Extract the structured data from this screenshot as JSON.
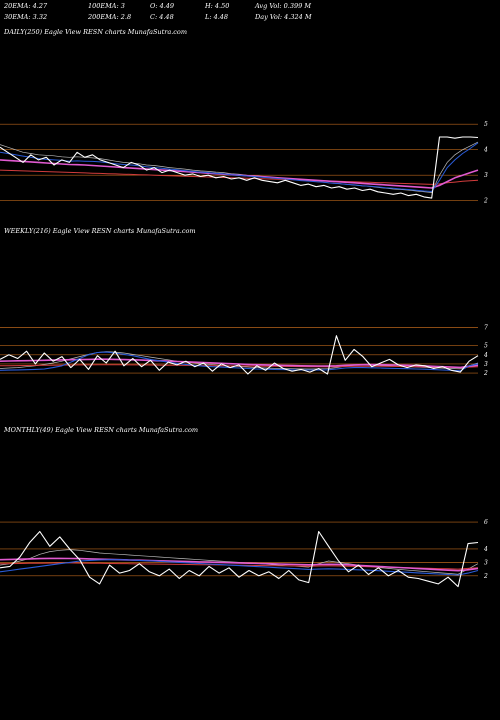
{
  "header": {
    "ema20": "20EMA: 4.27",
    "ema100": "100EMA: 3",
    "open": "O: 4.49",
    "high": "H: 4.50",
    "avgvol": "Avg Vol: 0.399  M",
    "ema30": "30EMA: 3.32",
    "ema200": "200EMA: 2.8",
    "close": "C: 4.48",
    "low": "L: 4.48",
    "dayvol": "Day Vol: 4.324  M"
  },
  "colors": {
    "background": "#000000",
    "price": "#ffffff",
    "gridline": "#b8651b",
    "ema_blue": "#2a5bd7",
    "ema_pink": "#e05ad0",
    "ema_red": "#d23c3c",
    "ema_grey": "#bbbbbb"
  },
  "chart_data": [
    {
      "type": "line",
      "title": "DAILY(250) Eagle  View  RESN  charts MunafaSutra.com",
      "yticks": [
        "5",
        "4",
        "3",
        "2"
      ],
      "y_tick_values": [
        5,
        4,
        3,
        2
      ],
      "ylim": [
        1.4,
        5.4
      ],
      "x": [
        0,
        4,
        8,
        12,
        16,
        20,
        24,
        28,
        32,
        36,
        40,
        44,
        48,
        52,
        56,
        60,
        64,
        68,
        72,
        76,
        80,
        84,
        88,
        92,
        96,
        100,
        104,
        108,
        112,
        116,
        120,
        124,
        128,
        132,
        136,
        140,
        144,
        148,
        152,
        156,
        160,
        164,
        168,
        172,
        176,
        180,
        184,
        188,
        192,
        196,
        200,
        204,
        208,
        212,
        216,
        220,
        224,
        228,
        232,
        236,
        240,
        244,
        248
      ],
      "series": [
        {
          "color": "#ffffff",
          "width": 1.1,
          "values": [
            4.1,
            3.9,
            3.7,
            3.5,
            3.8,
            3.6,
            3.7,
            3.4,
            3.6,
            3.5,
            3.9,
            3.7,
            3.8,
            3.6,
            3.5,
            3.4,
            3.3,
            3.5,
            3.4,
            3.2,
            3.3,
            3.1,
            3.2,
            3.1,
            3.0,
            3.05,
            2.95,
            3.0,
            2.9,
            2.95,
            2.85,
            2.9,
            2.8,
            2.9,
            2.8,
            2.75,
            2.7,
            2.8,
            2.7,
            2.6,
            2.65,
            2.55,
            2.6,
            2.5,
            2.55,
            2.45,
            2.5,
            2.4,
            2.45,
            2.35,
            2.3,
            2.25,
            2.3,
            2.2,
            2.25,
            2.15,
            2.1,
            4.5,
            4.5,
            4.45,
            4.5,
            4.5,
            4.48
          ]
        },
        {
          "color": "#2a5bd7",
          "width": 1.0,
          "values": [
            3.9,
            3.85,
            3.8,
            3.75,
            3.7,
            3.65,
            3.62,
            3.6,
            3.58,
            3.55,
            3.56,
            3.55,
            3.54,
            3.52,
            3.49,
            3.45,
            3.42,
            3.4,
            3.37,
            3.33,
            3.3,
            3.27,
            3.24,
            3.21,
            3.18,
            3.15,
            3.12,
            3.1,
            3.07,
            3.05,
            3.02,
            3.0,
            2.97,
            2.95,
            2.92,
            2.9,
            2.87,
            2.85,
            2.82,
            2.79,
            2.77,
            2.74,
            2.72,
            2.69,
            2.67,
            2.64,
            2.62,
            2.59,
            2.57,
            2.54,
            2.51,
            2.49,
            2.46,
            2.44,
            2.41,
            2.38,
            2.36,
            2.8,
            3.3,
            3.6,
            3.85,
            4.05,
            4.27
          ]
        },
        {
          "color": "#e05ad0",
          "width": 1.6,
          "values": [
            3.6,
            3.58,
            3.56,
            3.54,
            3.52,
            3.5,
            3.48,
            3.46,
            3.44,
            3.42,
            3.41,
            3.4,
            3.38,
            3.36,
            3.34,
            3.32,
            3.3,
            3.28,
            3.26,
            3.24,
            3.22,
            3.2,
            3.18,
            3.16,
            3.14,
            3.12,
            3.1,
            3.08,
            3.06,
            3.04,
            3.02,
            3.0,
            2.98,
            2.96,
            2.94,
            2.92,
            2.9,
            2.88,
            2.86,
            2.84,
            2.82,
            2.8,
            2.78,
            2.76,
            2.74,
            2.72,
            2.7,
            2.68,
            2.66,
            2.64,
            2.62,
            2.6,
            2.58,
            2.56,
            2.54,
            2.52,
            2.5,
            2.6,
            2.75,
            2.9,
            3.0,
            3.1,
            3.2
          ]
        },
        {
          "color": "#d23c3c",
          "width": 1.0,
          "values": [
            3.2,
            3.19,
            3.18,
            3.17,
            3.16,
            3.15,
            3.14,
            3.13,
            3.12,
            3.11,
            3.1,
            3.09,
            3.08,
            3.07,
            3.06,
            3.05,
            3.04,
            3.03,
            3.02,
            3.01,
            3.0,
            2.99,
            2.98,
            2.97,
            2.96,
            2.95,
            2.94,
            2.93,
            2.92,
            2.91,
            2.9,
            2.89,
            2.88,
            2.87,
            2.86,
            2.85,
            2.84,
            2.83,
            2.82,
            2.81,
            2.8,
            2.79,
            2.78,
            2.77,
            2.76,
            2.75,
            2.74,
            2.73,
            2.72,
            2.71,
            2.7,
            2.69,
            2.68,
            2.67,
            2.66,
            2.65,
            2.64,
            2.66,
            2.7,
            2.73,
            2.76,
            2.78,
            2.8
          ]
        },
        {
          "color": "#bbbbbb",
          "width": 0.7,
          "values": [
            4.2,
            4.1,
            4.0,
            3.9,
            3.85,
            3.8,
            3.78,
            3.76,
            3.72,
            3.7,
            3.72,
            3.7,
            3.68,
            3.65,
            3.6,
            3.55,
            3.5,
            3.48,
            3.45,
            3.4,
            3.38,
            3.34,
            3.3,
            3.27,
            3.24,
            3.2,
            3.17,
            3.15,
            3.12,
            3.1,
            3.06,
            3.04,
            3.0,
            2.98,
            2.95,
            2.92,
            2.89,
            2.87,
            2.84,
            2.8,
            2.78,
            2.75,
            2.72,
            2.69,
            2.67,
            2.64,
            2.61,
            2.58,
            2.56,
            2.52,
            2.49,
            2.46,
            2.44,
            2.41,
            2.38,
            2.35,
            2.32,
            3.0,
            3.5,
            3.8,
            4.0,
            4.15,
            4.3
          ]
        }
      ]
    },
    {
      "type": "line",
      "title": "WEEKLY(216) Eagle  View  RESN  charts MunafaSutra.com",
      "yticks": [
        "7",
        "5",
        "4",
        "3",
        "2"
      ],
      "y_tick_values": [
        7,
        5,
        4,
        3,
        2
      ],
      "ylim": [
        0.8,
        7.6
      ],
      "x": [
        0,
        4,
        8,
        12,
        16,
        20,
        24,
        28,
        32,
        36,
        40,
        44,
        48,
        52,
        56,
        60,
        64,
        68,
        72,
        76,
        80,
        84,
        88,
        92,
        96,
        100,
        104,
        108,
        112,
        116,
        120,
        124,
        128,
        132,
        136,
        140,
        144,
        148,
        152,
        156,
        160,
        164,
        168,
        172,
        176,
        180,
        184,
        188,
        192,
        196,
        200,
        204,
        208,
        212,
        216
      ],
      "series": [
        {
          "color": "#ffffff",
          "width": 1.1,
          "values": [
            3.5,
            4.0,
            3.6,
            4.4,
            3.0,
            4.2,
            3.3,
            3.8,
            2.6,
            3.5,
            2.4,
            3.9,
            3.1,
            4.4,
            2.8,
            3.6,
            2.7,
            3.4,
            2.3,
            3.2,
            2.9,
            3.3,
            2.7,
            3.1,
            2.2,
            3.0,
            2.6,
            2.9,
            1.9,
            2.8,
            2.3,
            3.1,
            2.5,
            2.2,
            2.4,
            2.1,
            2.5,
            1.9,
            6.1,
            3.4,
            4.6,
            3.8,
            2.7,
            3.1,
            3.5,
            2.9,
            2.6,
            2.9,
            2.8,
            2.5,
            2.7,
            2.3,
            2.1,
            3.3,
            3.9
          ]
        },
        {
          "color": "#2a5bd7",
          "width": 1.1,
          "values": [
            2.3,
            2.32,
            2.35,
            2.37,
            2.4,
            2.45,
            2.6,
            2.8,
            3.2,
            3.6,
            4.0,
            4.25,
            4.3,
            4.2,
            4.05,
            3.9,
            3.7,
            3.5,
            3.35,
            3.2,
            3.05,
            2.95,
            2.85,
            2.75,
            2.7,
            2.65,
            2.6,
            2.55,
            2.5,
            2.45,
            2.42,
            2.4,
            2.38,
            2.36,
            2.34,
            2.33,
            2.34,
            2.36,
            2.45,
            2.55,
            2.6,
            2.6,
            2.58,
            2.55,
            2.52,
            2.5,
            2.48,
            2.45,
            2.42,
            2.38,
            2.34,
            2.3,
            2.25,
            2.8,
            3.0
          ]
        },
        {
          "color": "#e05ad0",
          "width": 1.6,
          "values": [
            3.3,
            3.32,
            3.34,
            3.36,
            3.38,
            3.4,
            3.42,
            3.44,
            3.46,
            3.48,
            3.5,
            3.52,
            3.52,
            3.5,
            3.48,
            3.45,
            3.42,
            3.39,
            3.35,
            3.31,
            3.27,
            3.23,
            3.19,
            3.15,
            3.11,
            3.07,
            3.03,
            2.99,
            2.95,
            2.92,
            2.89,
            2.86,
            2.84,
            2.82,
            2.8,
            2.78,
            2.77,
            2.76,
            2.8,
            2.85,
            2.9,
            2.92,
            2.93,
            2.92,
            2.9,
            2.88,
            2.85,
            2.82,
            2.78,
            2.74,
            2.7,
            2.66,
            2.62,
            2.75,
            2.85
          ]
        },
        {
          "color": "#d23c3c",
          "width": 1.0,
          "values": [
            2.8,
            2.81,
            2.82,
            2.83,
            2.84,
            2.85,
            2.86,
            2.87,
            2.88,
            2.89,
            2.9,
            2.91,
            2.92,
            2.92,
            2.91,
            2.9,
            2.89,
            2.88,
            2.87,
            2.86,
            2.85,
            2.84,
            2.83,
            2.82,
            2.81,
            2.8,
            2.79,
            2.78,
            2.77,
            2.76,
            2.75,
            2.74,
            2.73,
            2.72,
            2.71,
            2.7,
            2.69,
            2.68,
            2.7,
            2.72,
            2.74,
            2.75,
            2.75,
            2.74,
            2.73,
            2.72,
            2.71,
            2.7,
            2.68,
            2.66,
            2.64,
            2.62,
            2.6,
            2.65,
            2.7
          ]
        },
        {
          "color": "#bbbbbb",
          "width": 0.7,
          "values": [
            2.5,
            2.55,
            2.6,
            2.7,
            2.8,
            2.95,
            3.1,
            3.3,
            3.55,
            3.8,
            4.05,
            4.25,
            4.35,
            4.3,
            4.2,
            4.05,
            3.9,
            3.75,
            3.6,
            3.45,
            3.3,
            3.2,
            3.1,
            3.0,
            2.92,
            2.85,
            2.78,
            2.72,
            2.66,
            2.6,
            2.56,
            2.52,
            2.5,
            2.48,
            2.46,
            2.45,
            2.46,
            2.48,
            2.6,
            2.75,
            2.85,
            2.88,
            2.86,
            2.82,
            2.78,
            2.74,
            2.7,
            2.66,
            2.62,
            2.58,
            2.54,
            2.5,
            2.46,
            2.8,
            3.1
          ]
        }
      ]
    },
    {
      "type": "line",
      "title": "MONTHLY(49) Eagle  View  RESN  charts MunafaSutra.com",
      "yticks": [
        "6",
        "4",
        "3",
        "2"
      ],
      "y_tick_values": [
        6,
        4,
        3,
        2
      ],
      "ylim": [
        0.5,
        6.6
      ],
      "x": [
        0,
        1,
        2,
        3,
        4,
        5,
        6,
        7,
        8,
        9,
        10,
        11,
        12,
        13,
        14,
        15,
        16,
        17,
        18,
        19,
        20,
        21,
        22,
        23,
        24,
        25,
        26,
        27,
        28,
        29,
        30,
        31,
        32,
        33,
        34,
        35,
        36,
        37,
        38,
        39,
        40,
        41,
        42,
        43,
        44,
        45,
        46,
        47,
        48
      ],
      "series": [
        {
          "color": "#ffffff",
          "width": 1.1,
          "values": [
            2.6,
            2.7,
            3.4,
            4.5,
            5.3,
            4.2,
            4.9,
            4.0,
            3.2,
            1.9,
            1.4,
            2.8,
            2.2,
            2.4,
            2.9,
            2.3,
            2.0,
            2.5,
            1.8,
            2.4,
            2.0,
            2.7,
            2.2,
            2.6,
            1.9,
            2.4,
            2.0,
            2.3,
            1.8,
            2.4,
            1.7,
            1.5,
            5.3,
            4.2,
            3.1,
            2.3,
            2.8,
            2.1,
            2.6,
            2.0,
            2.4,
            1.9,
            1.8,
            1.6,
            1.4,
            1.9,
            1.2,
            4.4,
            4.48
          ]
        },
        {
          "color": "#2a5bd7",
          "width": 1.1,
          "values": [
            2.3,
            2.4,
            2.5,
            2.6,
            2.7,
            2.8,
            2.9,
            3.0,
            3.1,
            3.15,
            3.18,
            3.2,
            3.2,
            3.18,
            3.15,
            3.12,
            3.08,
            3.04,
            3.0,
            2.96,
            2.92,
            2.88,
            2.84,
            2.8,
            2.76,
            2.72,
            2.68,
            2.64,
            2.6,
            2.56,
            2.52,
            2.48,
            2.5,
            2.52,
            2.5,
            2.48,
            2.45,
            2.42,
            2.38,
            2.34,
            2.3,
            2.26,
            2.22,
            2.18,
            2.14,
            2.1,
            2.06,
            2.2,
            2.4
          ]
        },
        {
          "color": "#e05ad0",
          "width": 1.6,
          "values": [
            3.2,
            3.22,
            3.24,
            3.26,
            3.28,
            3.3,
            3.3,
            3.29,
            3.28,
            3.26,
            3.24,
            3.22,
            3.2,
            3.18,
            3.16,
            3.14,
            3.12,
            3.1,
            3.08,
            3.06,
            3.04,
            3.02,
            3.0,
            2.98,
            2.96,
            2.94,
            2.92,
            2.9,
            2.88,
            2.86,
            2.84,
            2.82,
            2.84,
            2.86,
            2.85,
            2.82,
            2.78,
            2.74,
            2.7,
            2.66,
            2.62,
            2.58,
            2.54,
            2.5,
            2.46,
            2.42,
            2.38,
            2.45,
            2.55
          ]
        },
        {
          "color": "#d23c3c",
          "width": 1.0,
          "values": [
            2.9,
            2.91,
            2.92,
            2.93,
            2.94,
            2.95,
            2.96,
            2.96,
            2.95,
            2.94,
            2.93,
            2.92,
            2.91,
            2.9,
            2.89,
            2.88,
            2.87,
            2.86,
            2.85,
            2.84,
            2.83,
            2.82,
            2.81,
            2.8,
            2.79,
            2.78,
            2.77,
            2.76,
            2.75,
            2.74,
            2.73,
            2.72,
            2.73,
            2.74,
            2.73,
            2.72,
            2.7,
            2.68,
            2.66,
            2.64,
            2.62,
            2.6,
            2.58,
            2.56,
            2.54,
            2.52,
            2.5,
            2.55,
            2.6
          ]
        },
        {
          "color": "#bbbbbb",
          "width": 0.7,
          "values": [
            2.8,
            2.9,
            3.1,
            3.3,
            3.6,
            3.8,
            3.9,
            3.95,
            3.9,
            3.8,
            3.7,
            3.65,
            3.6,
            3.55,
            3.5,
            3.45,
            3.4,
            3.35,
            3.3,
            3.25,
            3.2,
            3.15,
            3.1,
            3.05,
            3.0,
            2.95,
            2.9,
            2.85,
            2.8,
            2.75,
            2.7,
            2.65,
            2.9,
            3.1,
            3.0,
            2.9,
            2.8,
            2.7,
            2.62,
            2.55,
            2.48,
            2.42,
            2.36,
            2.3,
            2.24,
            2.18,
            2.12,
            2.5,
            2.9
          ]
        }
      ]
    }
  ]
}
